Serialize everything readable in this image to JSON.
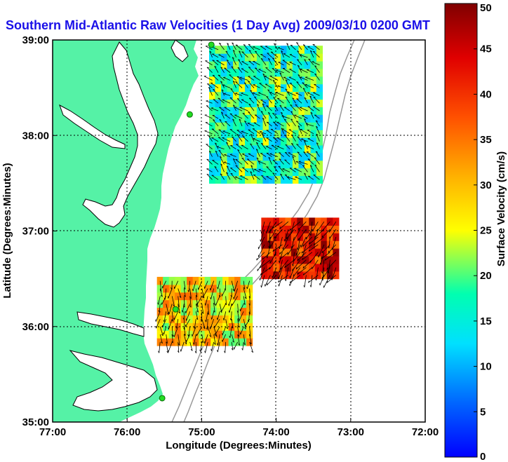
{
  "chart_data": {
    "type": "heatmap",
    "title": "Southern Mid-Atlantic Raw Velocities (1 Day Avg) 2009/03/10 0200 GMT",
    "xlabel": "Longitude (Degrees:Minutes)",
    "ylabel": "Latitude (Degrees:Minutes)",
    "x_ticks": [
      "77:00",
      "76:00",
      "75:00",
      "74:00",
      "73:00",
      "72:00"
    ],
    "y_ticks": [
      "39:00",
      "38:00",
      "37:00",
      "36:00",
      "35:00"
    ],
    "xlim": [
      -77,
      -72
    ],
    "ylim": [
      35,
      39
    ],
    "grid": true,
    "colorbar": {
      "label": "Surface Velocity (cm/s)",
      "range": [
        0,
        50
      ],
      "ticks": [
        "0",
        "5",
        "10",
        "15",
        "20",
        "25",
        "30",
        "35",
        "40",
        "45",
        "50"
      ]
    },
    "land_color": "#55f2a6",
    "coast_color": "#000000",
    "grid_color": "#000000",
    "arrow_color": "#000000",
    "title_color": "#1a10e8",
    "regions": [
      {
        "lon": [
          -74.9,
          -73.4
        ],
        "lat": [
          37.5,
          38.9
        ],
        "speed": 18
      },
      {
        "lon": [
          -74.2,
          -73.2
        ],
        "lat": [
          36.5,
          37.1
        ],
        "speed": 42
      },
      {
        "lon": [
          -75.6,
          -74.4
        ],
        "lat": [
          35.8,
          36.5
        ],
        "speed": 28
      }
    ],
    "stations": [
      {
        "lon": -74.87,
        "lat": 38.95
      },
      {
        "lon": -75.16,
        "lat": 38.22
      },
      {
        "lon": -75.35,
        "lat": 36.18
      },
      {
        "lon": -75.53,
        "lat": 35.25
      }
    ]
  }
}
